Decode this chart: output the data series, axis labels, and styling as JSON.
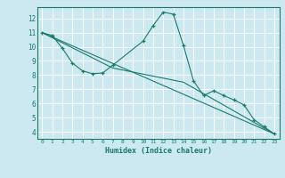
{
  "xlabel": "Humidex (Indice chaleur)",
  "bg_color": "#cce8f0",
  "grid_color": "#ffffff",
  "line_color": "#1a7a6a",
  "xlim": [
    -0.5,
    23.5
  ],
  "ylim": [
    3.5,
    12.8
  ],
  "yticks": [
    4,
    5,
    6,
    7,
    8,
    9,
    10,
    11,
    12
  ],
  "xticks": [
    0,
    1,
    2,
    3,
    4,
    5,
    6,
    7,
    8,
    9,
    10,
    11,
    12,
    13,
    14,
    15,
    16,
    17,
    18,
    19,
    20,
    21,
    22,
    23
  ],
  "line1_x": [
    0,
    1,
    2,
    3,
    4,
    5,
    6,
    7,
    10,
    11,
    12,
    13,
    14,
    15,
    16,
    17,
    18,
    19,
    20,
    21,
    22,
    23
  ],
  "line1_y": [
    11.0,
    10.8,
    9.9,
    8.85,
    8.3,
    8.1,
    8.15,
    8.7,
    10.4,
    11.5,
    12.45,
    12.3,
    10.1,
    7.6,
    6.55,
    6.9,
    6.55,
    6.25,
    5.9,
    4.85,
    4.35,
    3.85
  ],
  "line2_x": [
    0,
    7,
    14,
    23
  ],
  "line2_y": [
    11.0,
    8.5,
    7.5,
    3.85
  ],
  "line3_x": [
    0,
    23
  ],
  "line3_y": [
    11.0,
    3.85
  ]
}
